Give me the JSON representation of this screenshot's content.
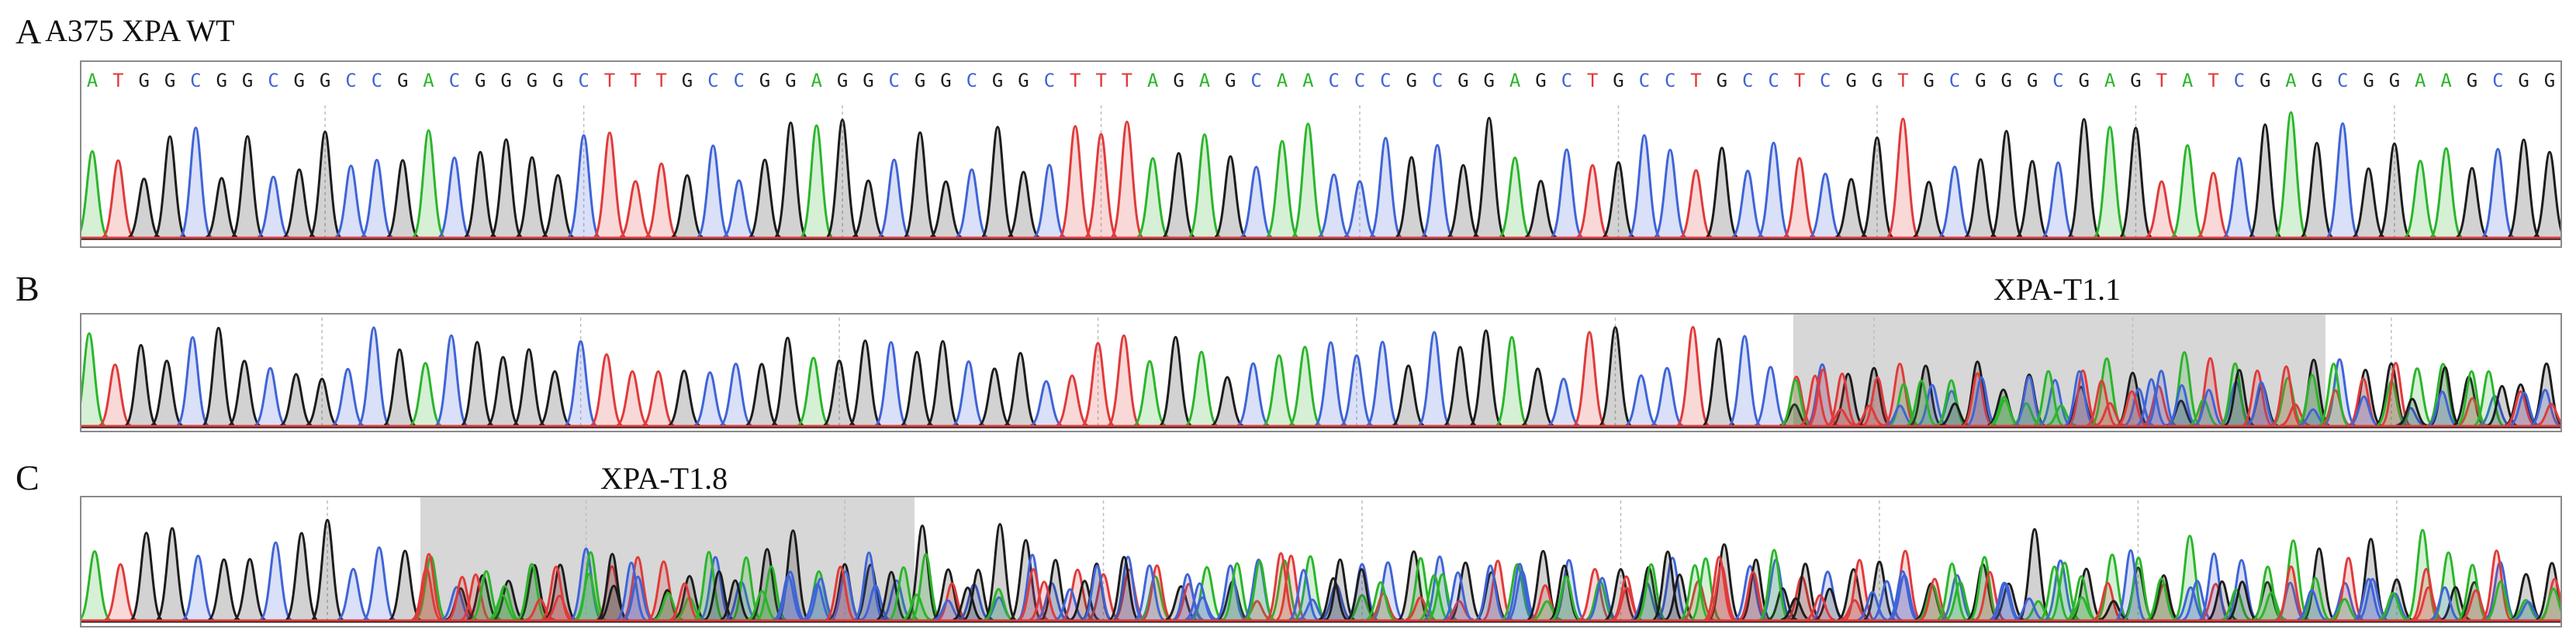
{
  "panels": [
    {
      "letter": "A",
      "title": "A375 XPA WT",
      "sequence": "ATGGCGGCGGCCGACGGGGCTTTGCCGGAGGCGGCGGCTTTAGAGCAACCCGCGGAGCTGCCTGCCTCGGTGCGGGCGAGTATCGAGCGGAAGCGG",
      "target_label": ""
    },
    {
      "letter": "B",
      "title": "",
      "sequence": "ATGGCGGCGGCCGACGGGGCTTTGCCGGAGGCGGCGGCTTTAGAGCAACCCGCGGAGCTGCCTGCCTCGGTGCGGGCGAGTATCGAGCGGAAGCGG",
      "target_label": "XPA-T1.1"
    },
    {
      "letter": "C",
      "title": "",
      "sequence": "ATGGCGGCGGCCGACGGGGCTTTGCCGGAGGCGGCGGCTTTAGAGCAACCCGCGGAGCTGCCTGCCTCGGTGCGGGCGAGTATCGAGCGGAAGCGG",
      "target_label": "XPA-T1.8"
    }
  ],
  "colors": {
    "A": "#2bb52b",
    "T": "#e03a3a",
    "G": "#1c1c1c",
    "C": "#3f64d6",
    "highlight": "#c9c9c9",
    "frame": "#8a8a8a"
  }
}
